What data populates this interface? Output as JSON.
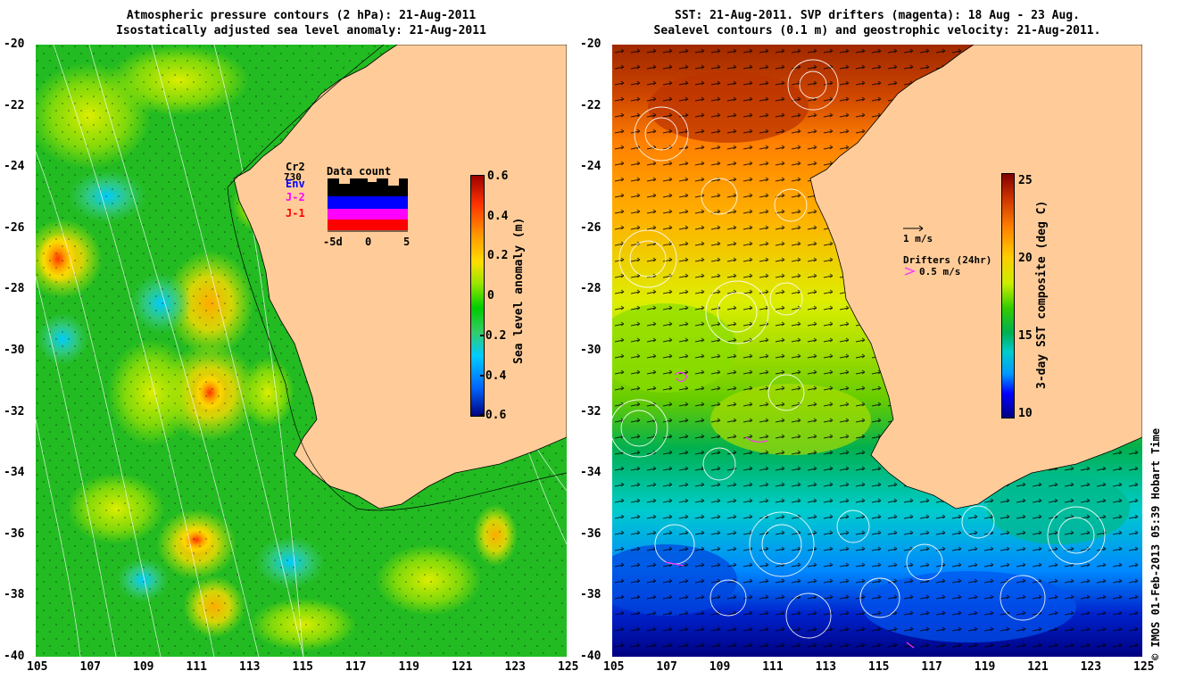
{
  "left_panel": {
    "title_line1": "Atmospheric pressure contours (2 hPa): 21-Aug-2011",
    "title_line2": "Isostatically adjusted sea level anomaly: 21-Aug-2011",
    "colorbar": {
      "label": "Sea level anomaly (m)",
      "ticks": [
        "0.6",
        "0.4",
        "0.2",
        "0",
        "-0.2",
        "-0.4",
        "-0.6"
      ]
    },
    "data_count": {
      "title": "Data count",
      "series": [
        "Cr2",
        "Env",
        "J-2",
        "J-1"
      ],
      "series_colors": [
        "#000000",
        "#0000ff",
        "#ff00ff",
        "#ff0000"
      ],
      "cr2_value": "730",
      "xticks": [
        "-5d",
        "0",
        "5"
      ]
    }
  },
  "right_panel": {
    "title_line1": "SST: 21-Aug-2011. SVP drifters (magenta): 18 Aug - 23 Aug.",
    "title_line2": "Sealevel contours (0.1 m) and geostrophic velocity: 21-Aug-2011.",
    "colorbar": {
      "label": "3-day SST composite (deg C)",
      "ticks": [
        "25",
        "20",
        "15",
        "10"
      ]
    },
    "velocity_legend": "1 m/s",
    "drifters_legend": "Drifters (24hr)",
    "drifters_speed": "0.5 m/s"
  },
  "axes": {
    "lat_ticks": [
      "-20",
      "-22",
      "-24",
      "-26",
      "-28",
      "-30",
      "-32",
      "-34",
      "-36",
      "-38",
      "-40"
    ],
    "lon_ticks": [
      "105",
      "107",
      "109",
      "111",
      "113",
      "115",
      "117",
      "119",
      "121",
      "123",
      "125"
    ]
  },
  "credit": "© IMOS 01-Feb-2013 05:39 Hobart Time",
  "colors": {
    "land": "#ffcc99",
    "sla_colormap": [
      "#00007f",
      "#0066ff",
      "#00ccff",
      "#33cc66",
      "#00cc00",
      "#99e600",
      "#ffdd00",
      "#ff9900",
      "#ff3300",
      "#990000"
    ],
    "sst_colormap": [
      "#000080",
      "#0000ff",
      "#0099ff",
      "#00cccc",
      "#00b050",
      "#33cc00",
      "#ccee00",
      "#ffcc00",
      "#ff8000",
      "#cc3300",
      "#800000"
    ]
  }
}
